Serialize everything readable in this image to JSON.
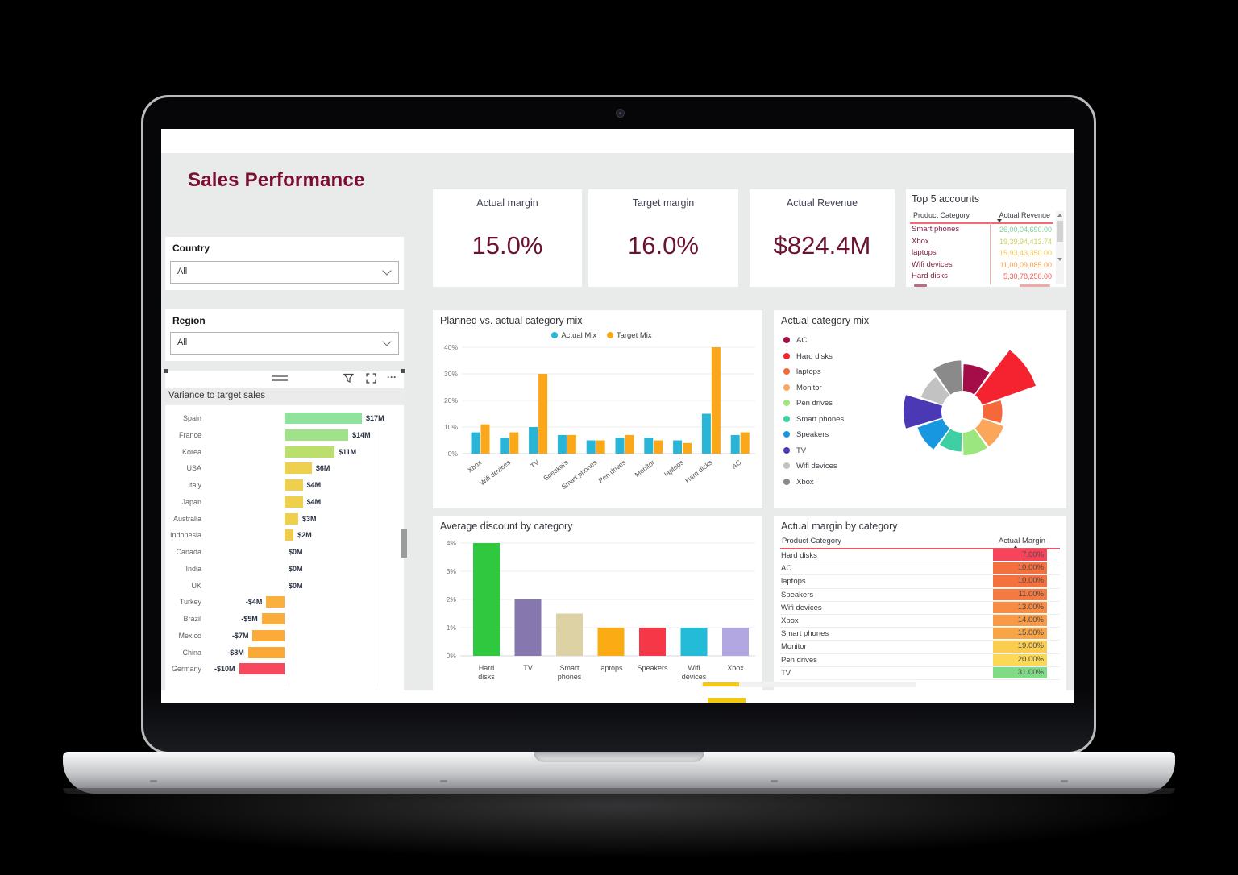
{
  "title": "Sales Performance",
  "filters": [
    {
      "label": "Country",
      "value": "All"
    },
    {
      "label": "Region",
      "value": "All"
    }
  ],
  "kpis": [
    {
      "label": "Actual margin",
      "value": "15.0%"
    },
    {
      "label": "Target margin",
      "value": "16.0%"
    },
    {
      "label": "Actual Revenue",
      "value": "$824.4M"
    }
  ],
  "top5": {
    "title": "Top 5 accounts",
    "columns": [
      "Product Category",
      "Actual Revenue"
    ],
    "rows": [
      {
        "category": "Smart phones",
        "value": "26,00,04,690.00",
        "color": "#7FCFA0"
      },
      {
        "category": "Xbox",
        "value": "19,39,94,413.74",
        "color": "#CBD35C"
      },
      {
        "category": "laptops",
        "value": "15,93,43,350.00",
        "color": "#F2C94C"
      },
      {
        "category": "Wifi devices",
        "value": "11,00,09,085.00",
        "color": "#F6A04A"
      },
      {
        "category": "Hard disks",
        "value": "5,30,78,250.00",
        "color": "#F25B50"
      }
    ]
  },
  "colors": {
    "accent_maroon": "#7A0E2E",
    "kpi_value": "#6C1231",
    "canvas_bg": "#E9EAEA",
    "header_rule": "#E8566A"
  },
  "chart_data": [
    {
      "id": "variance-to-target-sales",
      "type": "bar",
      "orientation": "horizontal",
      "title": "Variance to target sales",
      "categories": [
        "Spain",
        "France",
        "Korea",
        "USA",
        "Italy",
        "Japan",
        "Australia",
        "Indonesia",
        "Canada",
        "India",
        "UK",
        "Turkey",
        "Brazil",
        "Mexico",
        "China",
        "Germany"
      ],
      "values": [
        17,
        14,
        11,
        6,
        4,
        4,
        3,
        2,
        0,
        0,
        0,
        -4,
        -5,
        -7,
        -8,
        -10
      ],
      "labels": [
        "$17M",
        "$14M",
        "$11M",
        "$6M",
        "$4M",
        "$4M",
        "$3M",
        "$2M",
        "$0M",
        "$0M",
        "$0M",
        "-$4M",
        "-$5M",
        "-$7M",
        "-$8M",
        "-$10M"
      ],
      "colors": [
        "#8FE49B",
        "#9FE287",
        "#BADF6C",
        "#EDD14E",
        "#EED04C",
        "#EED04C",
        "#EFCF4B",
        "#F0CE49",
        "#EDD04C",
        "#EDD04C",
        "#EDD04C",
        "#FBAF3F",
        "#FBAD3C",
        "#FBAB39",
        "#FAA937",
        "#F8485E"
      ],
      "xticks": [
        "$0M",
        "$20M"
      ],
      "xlim": [
        -12,
        20
      ]
    },
    {
      "id": "planned-vs-actual-category-mix",
      "type": "bar",
      "title": "Planned vs. actual category mix",
      "categories": [
        "Xbox",
        "Wifi devices",
        "TV",
        "Speakers",
        "Smart phones",
        "Pen drives",
        "Monitor",
        "laptops",
        "Hard disks",
        "AC"
      ],
      "series": [
        {
          "name": "Actual Mix",
          "color": "#29B6D6",
          "values": [
            8,
            6,
            10,
            7,
            5,
            6,
            6,
            5,
            15,
            7
          ]
        },
        {
          "name": "Target Mix",
          "color": "#FAA81A",
          "values": [
            11,
            8,
            30,
            7,
            5,
            7,
            5,
            4,
            40,
            8
          ]
        }
      ],
      "yticks": [
        "0%",
        "10%",
        "20%",
        "30%",
        "40%"
      ],
      "ylim": [
        0,
        40
      ],
      "legend_position": "top",
      "grid": true
    },
    {
      "id": "actual-category-mix",
      "type": "pie",
      "variant": "rose-donut",
      "title": "Actual category mix",
      "categories": [
        "AC",
        "Hard disks",
        "laptops",
        "Monitor",
        "Pen drives",
        "Smart phones",
        "Speakers",
        "TV",
        "Wifi devices",
        "Xbox"
      ],
      "values": [
        7,
        15,
        5,
        6,
        6,
        5,
        7,
        10,
        6,
        8
      ],
      "colors": [
        "#A50D49",
        "#F5222F",
        "#F4683A",
        "#FAA75C",
        "#9CE67F",
        "#3ED0A2",
        "#1797E0",
        "#4B38B5",
        "#C2C2C2",
        "#8A8A8A"
      ],
      "legend_position": "left"
    },
    {
      "id": "average-discount-by-category",
      "type": "bar",
      "title": "Average discount by category",
      "categories": [
        "Hard disks",
        "TV",
        "Smart phones",
        "laptops",
        "Speakers",
        "Wifi devices",
        "Xbox"
      ],
      "values": [
        4,
        2,
        1.5,
        1,
        1,
        1,
        1
      ],
      "colors": [
        "#30C83E",
        "#8677AE",
        "#DCD2A4",
        "#FBAB13",
        "#F53748",
        "#23BBD8",
        "#B3A7E2"
      ],
      "yticks": [
        "0%",
        "1%",
        "2%",
        "3%",
        "4%"
      ],
      "ylim": [
        0,
        4
      ],
      "grid": true
    },
    {
      "id": "actual-margin-by-category",
      "type": "table",
      "title": "Actual margin by category",
      "columns": [
        "Product Category",
        "Actual Margin"
      ],
      "rows": [
        [
          "Hard disks",
          "7.00%",
          "#F8445A"
        ],
        [
          "AC",
          "10.00%",
          "#F4703F"
        ],
        [
          "laptops",
          "10.00%",
          "#F4713F"
        ],
        [
          "Speakers",
          "11.00%",
          "#F57A41"
        ],
        [
          "Wifi devices",
          "13.00%",
          "#F78D44"
        ],
        [
          "Xbox",
          "14.00%",
          "#F89A46"
        ],
        [
          "Smart phones",
          "15.00%",
          "#F8A447"
        ],
        [
          "Monitor",
          "19.00%",
          "#FACD50"
        ],
        [
          "Pen drives",
          "20.00%",
          "#FBD955"
        ],
        [
          "TV",
          "31.00%",
          "#7FDB86"
        ]
      ]
    }
  ]
}
